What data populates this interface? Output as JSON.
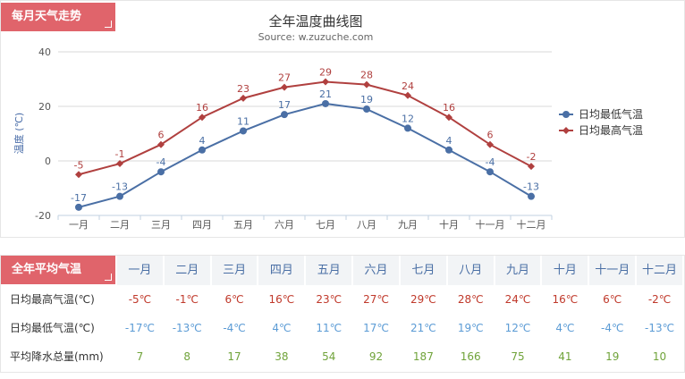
{
  "monthly_tag": "每月天气走势",
  "annual_tag": "全年平均气温",
  "legend_colors": {
    "low": "#4a6fa5",
    "high": "#b0403f"
  },
  "chart_data": {
    "type": "line",
    "title": "全年温度曲线图",
    "subtitle": "Source: w.zuzuche.com",
    "ylabel": "温度 (℃)",
    "ylim": [
      -20,
      40
    ],
    "yticks": [
      40,
      20,
      0,
      -20
    ],
    "categories": [
      "一月",
      "二月",
      "三月",
      "四月",
      "五月",
      "六月",
      "七月",
      "八月",
      "九月",
      "十月",
      "十一月",
      "十二月"
    ],
    "series": [
      {
        "name": "日均最低气温",
        "values": [
          -17,
          -13,
          -4,
          4,
          11,
          17,
          21,
          19,
          12,
          4,
          -4,
          -13
        ]
      },
      {
        "name": "日均最高气温",
        "values": [
          -5,
          -1,
          6,
          16,
          23,
          27,
          29,
          28,
          24,
          16,
          6,
          -2
        ]
      }
    ],
    "legend": "right"
  },
  "table": {
    "months": [
      "一月",
      "二月",
      "三月",
      "四月",
      "五月",
      "六月",
      "七月",
      "八月",
      "九月",
      "十月",
      "十一月",
      "十二月"
    ],
    "rows": [
      {
        "label": "日均最高气温(℃)",
        "color": "#c0392b",
        "values": [
          "-5℃",
          "-1℃",
          "6℃",
          "16℃",
          "23℃",
          "27℃",
          "29℃",
          "28℃",
          "24℃",
          "16℃",
          "6℃",
          "-2℃"
        ]
      },
      {
        "label": "日均最低气温(℃)",
        "color": "#5b9bd5",
        "values": [
          "-17℃",
          "-13℃",
          "-4℃",
          "4℃",
          "11℃",
          "17℃",
          "21℃",
          "19℃",
          "12℃",
          "4℃",
          "-4℃",
          "-13℃"
        ]
      },
      {
        "label": "平均降水总量(mm)",
        "color": "#70a33a",
        "values": [
          "7",
          "8",
          "17",
          "38",
          "54",
          "92",
          "187",
          "166",
          "75",
          "41",
          "19",
          "10"
        ]
      }
    ]
  }
}
